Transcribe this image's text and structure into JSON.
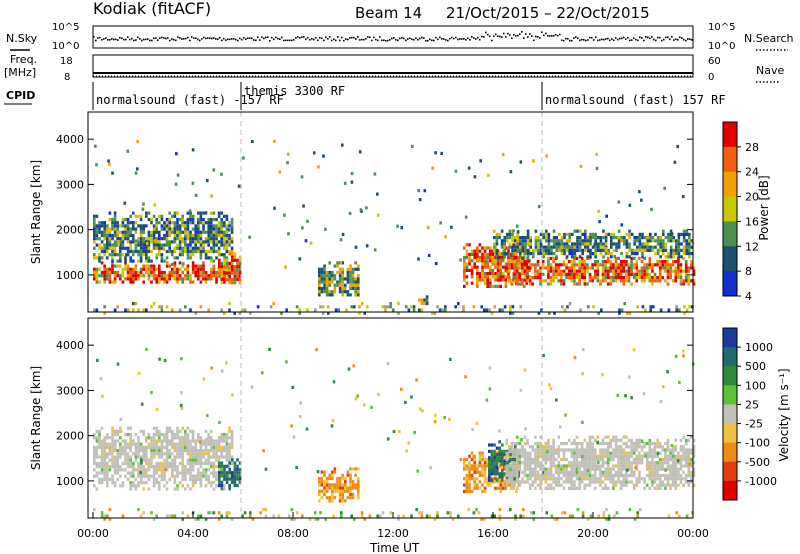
{
  "header": {
    "station": "Kodiak (fitACF)",
    "beam": "Beam 14",
    "dates": "21/Oct/2015 – 22/Oct/2015"
  },
  "side_labels": {
    "nsky": "N.Sky",
    "nsearch": "N.Search",
    "freq": "Freq.",
    "freq_unit": "[MHz]",
    "nave": "Nave",
    "cpid": "CPID"
  },
  "small_axes": {
    "noise_top": "10^5",
    "noise_bottom": "10^0",
    "noise_top_right": "10^5",
    "noise_bottom_right": "10^0",
    "freq_top": "18",
    "freq_bottom": "8",
    "nave_top": "60",
    "nave_bottom": "0"
  },
  "cpid_segments": [
    {
      "label": "normalsound (fast) -157 RF",
      "start_hour": 0
    },
    {
      "label": "themis 3300 RF",
      "start_hour": 6
    },
    {
      "label": "normalsound (fast) 157 RF",
      "start_hour": 18
    }
  ],
  "axes": {
    "ylabel_top": "Slant Range [km]",
    "ylabel_bottom": "Slant Range [km]",
    "xlabel": "Time UT",
    "yticks": [
      "1000",
      "2000",
      "3000",
      "4000"
    ],
    "xticks": [
      "00:00",
      "04:00",
      "08:00",
      "12:00",
      "16:00",
      "20:00",
      "00:00"
    ]
  },
  "colorbars": {
    "power": {
      "title": "Power [dB]",
      "labels": [
        "28",
        "24",
        "20",
        "16",
        "12",
        "8",
        "4"
      ],
      "colors": [
        "#e00000",
        "#f06010",
        "#f0a000",
        "#c8c800",
        "#4a9050",
        "#1a5070",
        "#1030d0"
      ]
    },
    "velocity": {
      "title": "Velocity [m s⁻¹]",
      "labels": [
        "1000",
        "500",
        "100",
        "25",
        "-25",
        "-100",
        "-500",
        "-1000"
      ],
      "colors": [
        "#1a3aa0",
        "#1f6a6a",
        "#2e8a3a",
        "#5cc03a",
        "#c0c0b8",
        "#f0c040",
        "#f08c10",
        "#e04010",
        "#e00000"
      ]
    }
  },
  "chart_data": [
    {
      "type": "heatmap",
      "title": "Power",
      "xlabel": "Time UT",
      "ylabel": "Slant Range [km]",
      "xlim_hours": [
        0,
        24
      ],
      "ylim_km": [
        180,
        4600
      ],
      "colorbar_label": "Power [dB]",
      "colorbar_range": [
        0,
        30
      ],
      "scatter_regions": [
        {
          "t0": 0.0,
          "t1": 5.6,
          "r0": 850,
          "r1": 1300,
          "level": "high"
        },
        {
          "t0": 0.0,
          "t1": 5.6,
          "r0": 1300,
          "r1": 2400,
          "level": "mid"
        },
        {
          "t0": 5.0,
          "t1": 5.9,
          "r0": 800,
          "r1": 1500,
          "level": "high"
        },
        {
          "t0": 9.0,
          "t1": 10.6,
          "r0": 550,
          "r1": 1300,
          "level": "low"
        },
        {
          "t0": 13.0,
          "t1": 13.4,
          "r0": 400,
          "r1": 550,
          "level": "low"
        },
        {
          "t0": 14.8,
          "t1": 17.5,
          "r0": 750,
          "r1": 1700,
          "level": "high"
        },
        {
          "t0": 16.5,
          "t1": 24.0,
          "r0": 800,
          "r1": 1400,
          "level": "high"
        },
        {
          "t0": 16.0,
          "t1": 24.0,
          "r0": 1400,
          "r1": 2000,
          "level": "mid"
        },
        {
          "t0": 0.0,
          "t1": 24.0,
          "r0": 180,
          "r1": 400,
          "level": "ground"
        }
      ]
    },
    {
      "type": "heatmap",
      "title": "Velocity",
      "xlabel": "Time UT",
      "ylabel": "Slant Range [km]",
      "xlim_hours": [
        0,
        24
      ],
      "ylim_km": [
        180,
        4600
      ],
      "colorbar_label": "Velocity [m s⁻¹]",
      "colorbar_range": [
        -1000,
        1000
      ],
      "scatter_regions": [
        {
          "t0": 0.0,
          "t1": 5.6,
          "r0": 850,
          "r1": 2200,
          "level": "near-zero"
        },
        {
          "t0": 5.0,
          "t1": 5.9,
          "r0": 800,
          "r1": 1500,
          "level": "positive"
        },
        {
          "t0": 9.0,
          "t1": 10.6,
          "r0": 550,
          "r1": 1300,
          "level": "negative"
        },
        {
          "t0": 14.8,
          "t1": 17.0,
          "r0": 750,
          "r1": 1650,
          "level": "negative"
        },
        {
          "t0": 15.8,
          "t1": 17.0,
          "r0": 1000,
          "r1": 1900,
          "level": "positive"
        },
        {
          "t0": 16.5,
          "t1": 24.0,
          "r0": 800,
          "r1": 2000,
          "level": "near-zero"
        }
      ]
    }
  ]
}
